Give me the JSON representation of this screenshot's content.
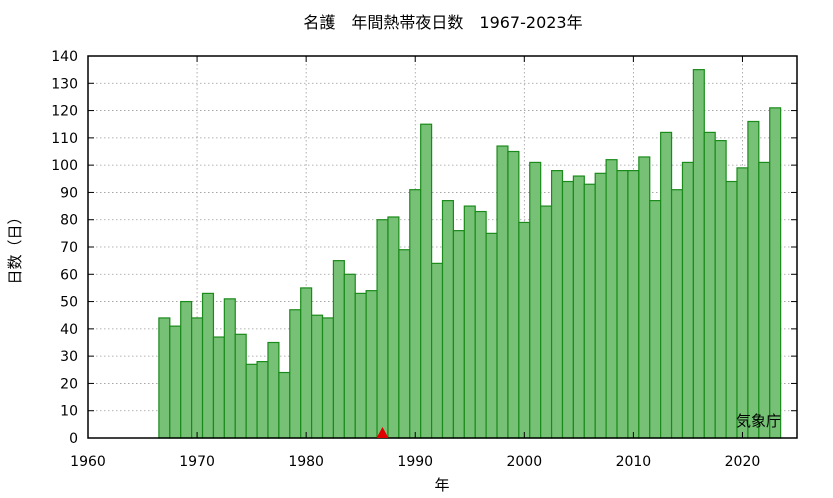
{
  "chart_data": {
    "type": "bar",
    "title": "名護　年間熱帯夜日数　1967-2023年",
    "xlabel": "年",
    "ylabel": "日数（日）",
    "xlim": [
      1960,
      2025
    ],
    "ylim": [
      0,
      140
    ],
    "x_ticks": [
      1960,
      1970,
      1980,
      1990,
      2000,
      2010,
      2020
    ],
    "y_ticks": [
      0,
      10,
      20,
      30,
      40,
      50,
      60,
      70,
      80,
      90,
      100,
      110,
      120,
      130,
      140
    ],
    "grid": true,
    "bar_fill": "#77c177",
    "bar_edge": "#1a8a1a",
    "marker": {
      "x": 1987,
      "color": "#e00000",
      "shape": "triangle"
    },
    "credit": "気象庁",
    "years": [
      1967,
      1968,
      1969,
      1970,
      1971,
      1972,
      1973,
      1974,
      1975,
      1976,
      1977,
      1978,
      1979,
      1980,
      1981,
      1982,
      1983,
      1984,
      1985,
      1986,
      1987,
      1988,
      1989,
      1990,
      1991,
      1992,
      1993,
      1994,
      1995,
      1996,
      1997,
      1998,
      1999,
      2000,
      2001,
      2002,
      2003,
      2004,
      2005,
      2006,
      2007,
      2008,
      2009,
      2010,
      2011,
      2012,
      2013,
      2014,
      2015,
      2016,
      2017,
      2018,
      2019,
      2020,
      2021,
      2022,
      2023
    ],
    "values": [
      44,
      41,
      50,
      44,
      53,
      37,
      51,
      38,
      27,
      28,
      35,
      24,
      47,
      55,
      45,
      44,
      65,
      60,
      53,
      54,
      80,
      81,
      69,
      91,
      115,
      64,
      87,
      76,
      85,
      83,
      75,
      107,
      105,
      79,
      101,
      85,
      98,
      94,
      96,
      93,
      97,
      102,
      98,
      98,
      103,
      87,
      112,
      91,
      101,
      135,
      112,
      109,
      94,
      99,
      116,
      101,
      121
    ]
  }
}
